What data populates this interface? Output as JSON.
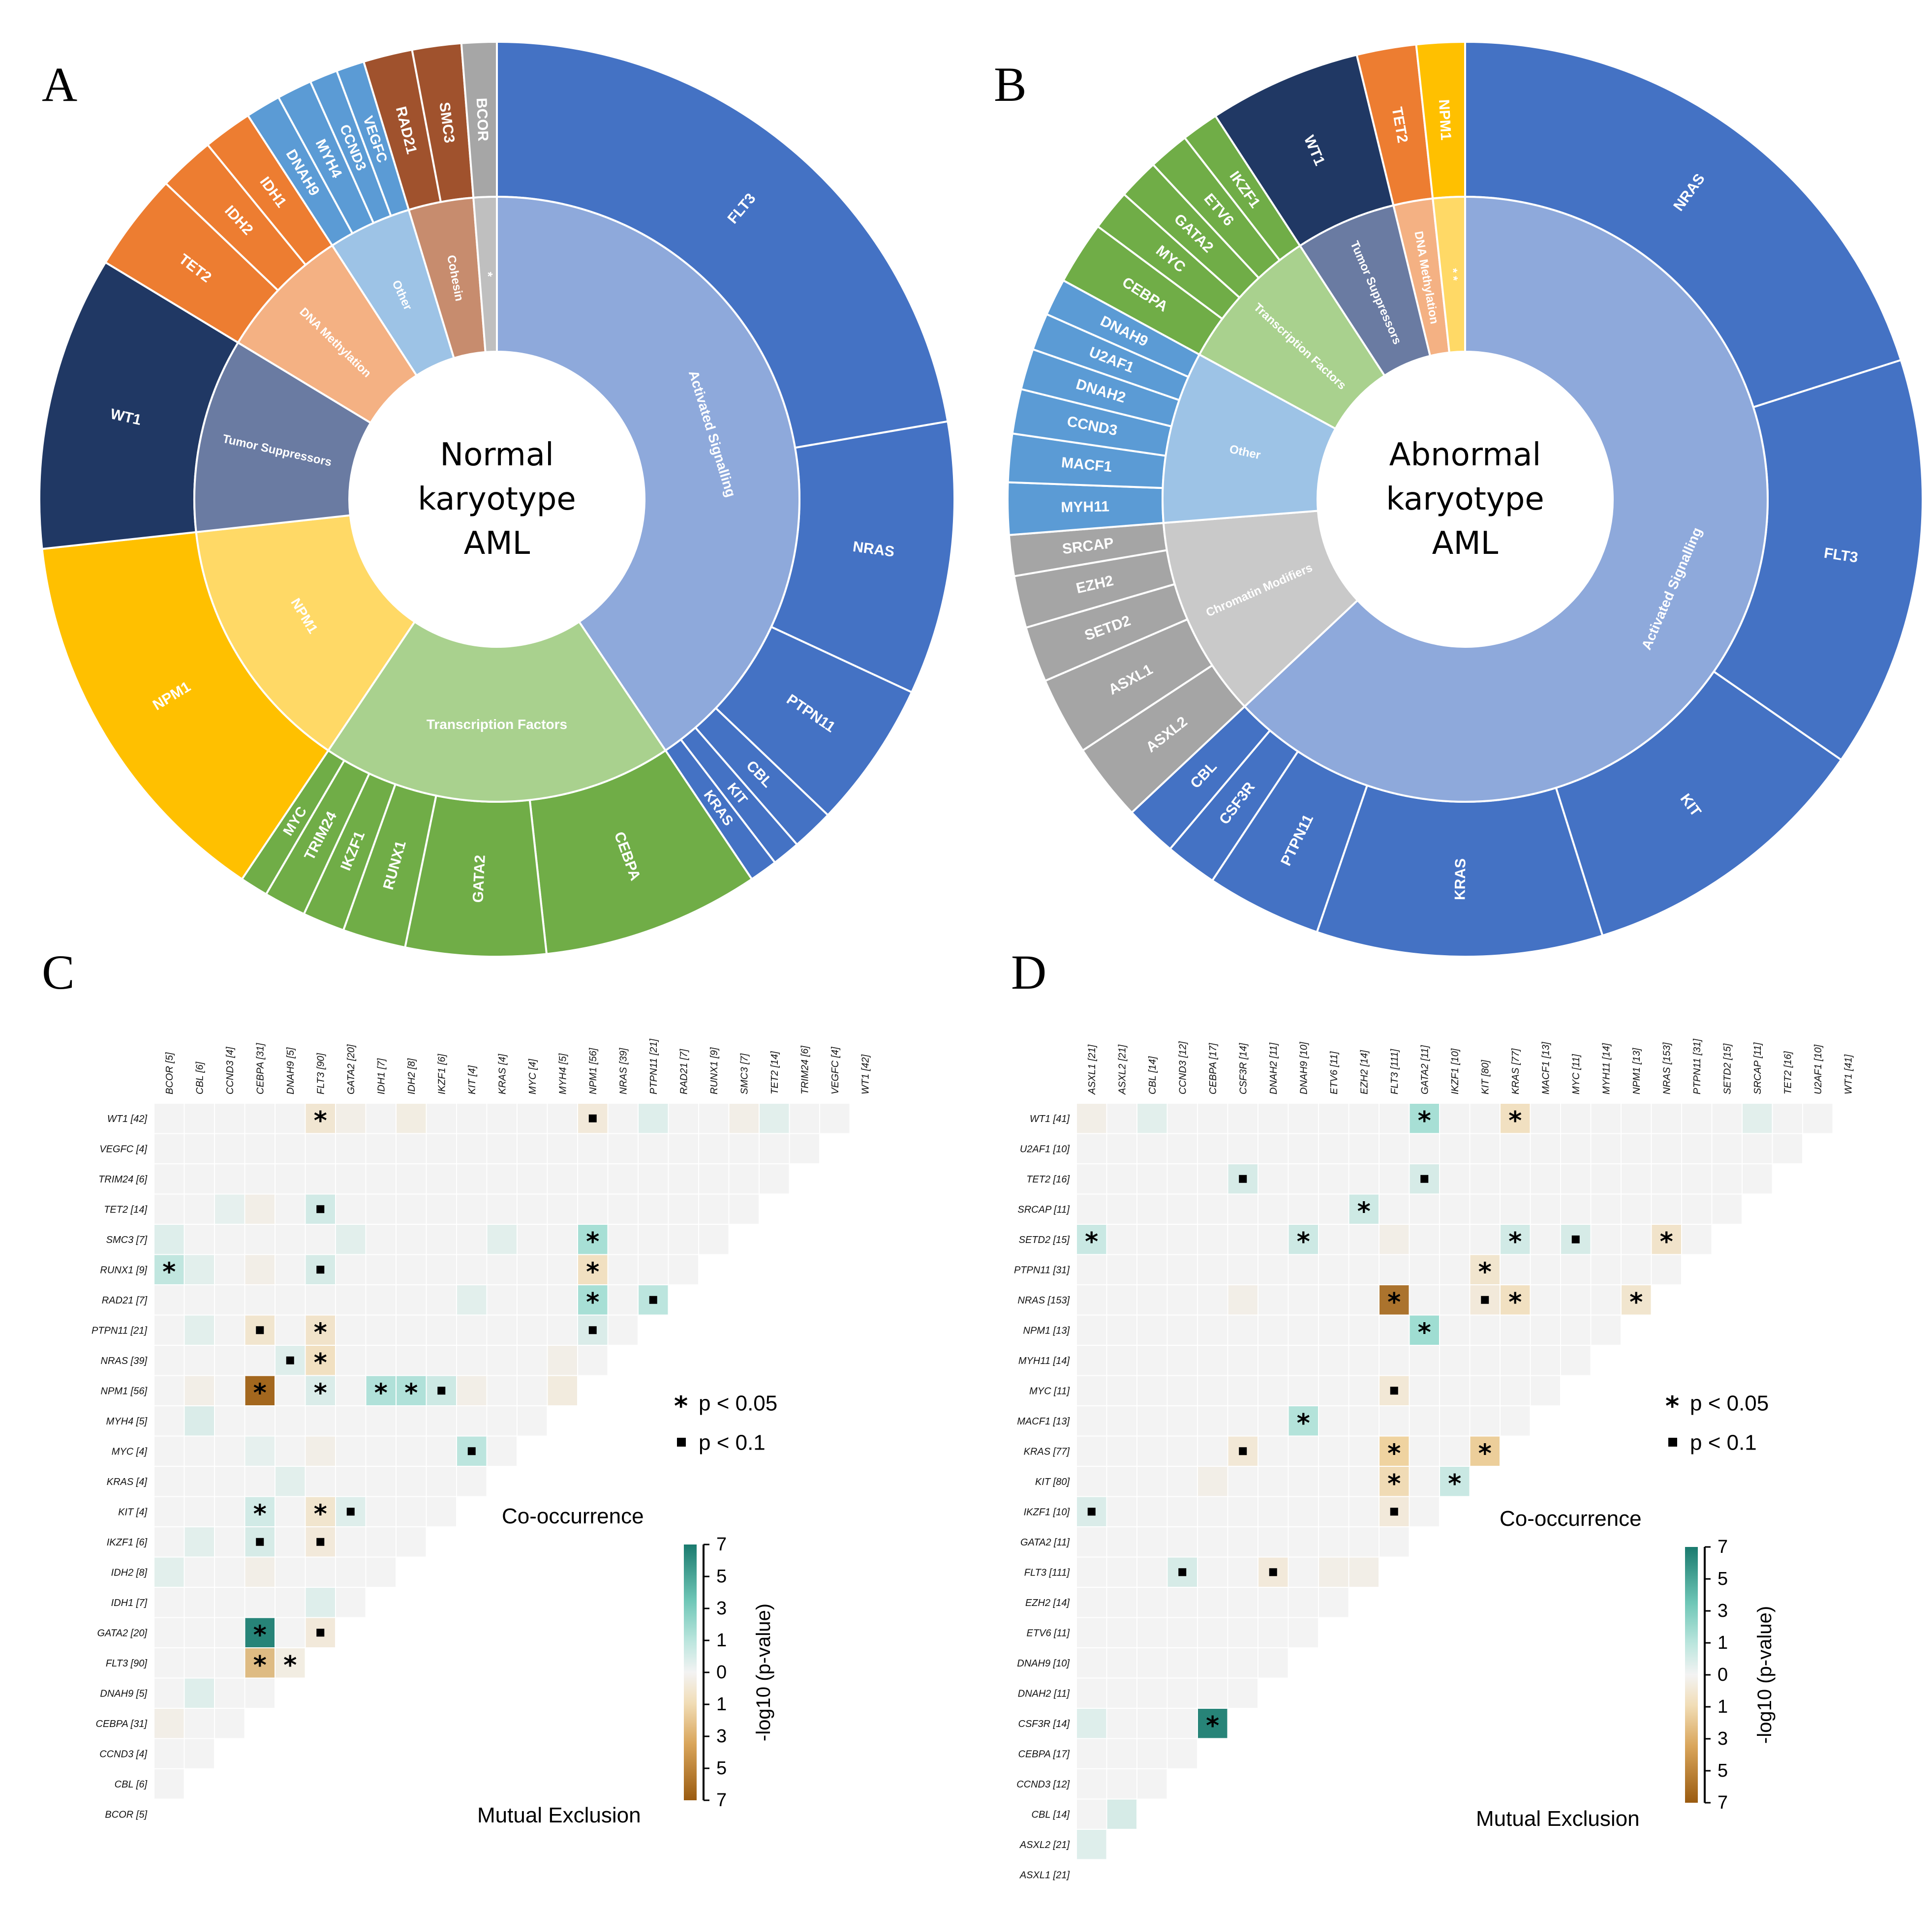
{
  "chart_data": [
    {
      "panel": "A",
      "type": "sunburst",
      "center_label": [
        "Normal",
        "karyotype",
        "AML"
      ],
      "start_angle": 0,
      "inner": [
        {
          "name": "Activated Signalling",
          "color": "#8EA9DB"
        },
        {
          "name": "Transcription Factors",
          "color": "#A9D18E"
        },
        {
          "name": "NPM1",
          "color": "#FFD966"
        },
        {
          "name": "Tumor Suppressors",
          "color": "#6A7BA2"
        },
        {
          "name": "DNA Methylation",
          "color": "#F4B183"
        },
        {
          "name": "Other",
          "color": "#9DC3E6"
        },
        {
          "name": "Cohesin",
          "color": "#C78C6E"
        },
        {
          "name": "*",
          "color": "#BFBFBF"
        }
      ],
      "outer": [
        {
          "name": "FLT3",
          "value": 90,
          "group": 0,
          "color": "#4472C4"
        },
        {
          "name": "NRAS",
          "value": 39,
          "group": 0,
          "color": "#4472C4"
        },
        {
          "name": "PTPN11",
          "value": 21,
          "group": 0,
          "color": "#4472C4"
        },
        {
          "name": "CBL",
          "value": 6,
          "group": 0,
          "color": "#4472C4"
        },
        {
          "name": "KIT",
          "value": 4,
          "group": 0,
          "color": "#4472C4"
        },
        {
          "name": "KRAS",
          "value": 4,
          "group": 0,
          "color": "#4472C4"
        },
        {
          "name": "CEBPA",
          "value": 31,
          "group": 1,
          "color": "#70AD47"
        },
        {
          "name": "GATA2",
          "value": 20,
          "group": 1,
          "color": "#70AD47"
        },
        {
          "name": "RUNX1",
          "value": 9,
          "group": 1,
          "color": "#70AD47"
        },
        {
          "name": "IKZF1",
          "value": 6,
          "group": 1,
          "color": "#70AD47"
        },
        {
          "name": "TRIM24",
          "value": 6,
          "group": 1,
          "color": "#70AD47"
        },
        {
          "name": "MYC",
          "value": 4,
          "group": 1,
          "color": "#70AD47"
        },
        {
          "name": "NPM1",
          "value": 56,
          "group": 2,
          "color": "#FFC000"
        },
        {
          "name": "WT1",
          "value": 42,
          "group": 3,
          "color": "#203864"
        },
        {
          "name": "TET2",
          "value": 14,
          "group": 4,
          "color": "#ED7D31"
        },
        {
          "name": "IDH2",
          "value": 8,
          "group": 4,
          "color": "#ED7D31"
        },
        {
          "name": "IDH1",
          "value": 7,
          "group": 4,
          "color": "#ED7D31"
        },
        {
          "name": "DNAH9",
          "value": 5,
          "group": 5,
          "color": "#5B9BD5"
        },
        {
          "name": "MYH4",
          "value": 5,
          "group": 5,
          "color": "#5B9BD5"
        },
        {
          "name": "CCND3",
          "value": 4,
          "group": 5,
          "color": "#5B9BD5"
        },
        {
          "name": "VEGFC",
          "value": 4,
          "group": 5,
          "color": "#5B9BD5"
        },
        {
          "name": "RAD21",
          "value": 7,
          "group": 6,
          "color": "#A0522D"
        },
        {
          "name": "SMC3",
          "value": 7,
          "group": 6,
          "color": "#A0522D"
        },
        {
          "name": "BCOR",
          "value": 5,
          "group": 7,
          "color": "#A6A6A6"
        }
      ]
    },
    {
      "panel": "B",
      "type": "sunburst",
      "center_label": [
        "Abnormal",
        "karyotype",
        "AML"
      ],
      "start_angle": 0,
      "inner": [
        {
          "name": "Activated Signalling",
          "color": "#8EA9DB"
        },
        {
          "name": "Chromatin Modifiers",
          "color": "#C9C9C9"
        },
        {
          "name": "Other",
          "color": "#9DC3E6"
        },
        {
          "name": "Transcription Factors",
          "color": "#A9D18E"
        },
        {
          "name": "Tumor Suppressors",
          "color": "#6A7BA2"
        },
        {
          "name": "DNA Methylation",
          "color": "#F4B183"
        },
        {
          "name": "* *",
          "color": "#FFD966"
        }
      ],
      "outer": [
        {
          "name": "NRAS",
          "value": 153,
          "group": 0,
          "color": "#4472C4"
        },
        {
          "name": "FLT3",
          "value": 111,
          "group": 0,
          "color": "#4472C4"
        },
        {
          "name": "KIT",
          "value": 80,
          "group": 0,
          "color": "#4472C4"
        },
        {
          "name": "KRAS",
          "value": 77,
          "group": 0,
          "color": "#4472C4"
        },
        {
          "name": "PTPN11",
          "value": 31,
          "group": 0,
          "color": "#4472C4"
        },
        {
          "name": "CSF3R",
          "value": 14,
          "group": 0,
          "color": "#4472C4"
        },
        {
          "name": "CBL",
          "value": 14,
          "group": 0,
          "color": "#4472C4"
        },
        {
          "name": "ASXL2",
          "value": 21,
          "group": 1,
          "color": "#A5A5A5"
        },
        {
          "name": "ASXL1",
          "value": 21,
          "group": 1,
          "color": "#A5A5A5"
        },
        {
          "name": "SETD2",
          "value": 15,
          "group": 1,
          "color": "#A5A5A5"
        },
        {
          "name": "EZH2",
          "value": 14,
          "group": 1,
          "color": "#A5A5A5"
        },
        {
          "name": "SRCAP",
          "value": 11,
          "group": 1,
          "color": "#A5A5A5"
        },
        {
          "name": "MYH11",
          "value": 14,
          "group": 2,
          "color": "#5B9BD5"
        },
        {
          "name": "MACF1",
          "value": 13,
          "group": 2,
          "color": "#5B9BD5"
        },
        {
          "name": "CCND3",
          "value": 12,
          "group": 2,
          "color": "#5B9BD5"
        },
        {
          "name": "DNAH2",
          "value": 11,
          "group": 2,
          "color": "#5B9BD5"
        },
        {
          "name": "U2AF1",
          "value": 10,
          "group": 2,
          "color": "#5B9BD5"
        },
        {
          "name": "DNAH9",
          "value": 10,
          "group": 2,
          "color": "#5B9BD5"
        },
        {
          "name": "CEBPA",
          "value": 17,
          "group": 3,
          "color": "#70AD47"
        },
        {
          "name": "MYC",
          "value": 11,
          "group": 3,
          "color": "#70AD47"
        },
        {
          "name": "GATA2",
          "value": 11,
          "group": 3,
          "color": "#70AD47"
        },
        {
          "name": "ETV6",
          "value": 11,
          "group": 3,
          "color": "#70AD47"
        },
        {
          "name": "IKZF1",
          "value": 10,
          "group": 3,
          "color": "#70AD47"
        },
        {
          "name": "WT1",
          "value": 41,
          "group": 4,
          "color": "#203864"
        },
        {
          "name": "TET2",
          "value": 16,
          "group": 5,
          "color": "#ED7D31"
        },
        {
          "name": "NPM1",
          "value": 13,
          "group": 6,
          "color": "#FFC000"
        }
      ]
    },
    {
      "panel": "C",
      "type": "heatmap",
      "genes": [
        "BCOR [5]",
        "CBL [6]",
        "CCND3 [4]",
        "CEBPA [31]",
        "DNAH9 [5]",
        "FLT3 [90]",
        "GATA2 [20]",
        "IDH1 [7]",
        "IDH2 [8]",
        "IKZF1 [6]",
        "KIT [4]",
        "KRAS [4]",
        "MYC [4]",
        "MYH4 [5]",
        "NPM1 [56]",
        "NRAS [39]",
        "PTPN11 [21]",
        "RAD21 [7]",
        "RUNX1 [9]",
        "SMC3 [7]",
        "TET2 [14]",
        "TRIM24 [6]",
        "VEGFC [4]",
        "WT1 [42]"
      ],
      "cells": [
        {
          "r": "WT1",
          "c": "FLT3",
          "v": -0.8,
          "sig": "*"
        },
        {
          "r": "WT1",
          "c": "NPM1",
          "v": -0.6,
          "sig": "."
        },
        {
          "r": "WT1",
          "c": "IDH2",
          "v": -0.4
        },
        {
          "r": "WT1",
          "c": "GATA2",
          "v": -0.3
        },
        {
          "r": "WT1",
          "c": "PTPN11",
          "v": 0.5
        },
        {
          "r": "WT1",
          "c": "TET2",
          "v": 0.4
        },
        {
          "r": "WT1",
          "c": "SMC3",
          "v": -0.3
        },
        {
          "r": "TET2",
          "c": "FLT3",
          "v": 0.8,
          "sig": "."
        },
        {
          "r": "TET2",
          "c": "CEBPA",
          "v": -0.3
        },
        {
          "r": "TET2",
          "c": "CCND3",
          "v": 0.3
        },
        {
          "r": "SMC3",
          "c": "NPM1",
          "v": 1.8,
          "sig": "*"
        },
        {
          "r": "SMC3",
          "c": "BCOR",
          "v": 0.5
        },
        {
          "r": "SMC3",
          "c": "GATA2",
          "v": 0.4
        },
        {
          "r": "SMC3",
          "c": "KRAS",
          "v": 0.4
        },
        {
          "r": "RUNX1",
          "c": "BCOR",
          "v": 1.2,
          "sig": "*"
        },
        {
          "r": "RUNX1",
          "c": "FLT3",
          "v": 0.7,
          "sig": "."
        },
        {
          "r": "RUNX1",
          "c": "NPM1",
          "v": -1.2,
          "sig": "*"
        },
        {
          "r": "RUNX1",
          "c": "CBL",
          "v": 0.4
        },
        {
          "r": "RUNX1",
          "c": "CEBPA",
          "v": -0.3
        },
        {
          "r": "RAD21",
          "c": "NPM1",
          "v": 1.8,
          "sig": "*"
        },
        {
          "r": "RAD21",
          "c": "PTPN11",
          "v": 1.3,
          "sig": "."
        },
        {
          "r": "RAD21",
          "c": "KIT",
          "v": 0.4
        },
        {
          "r": "PTPN11",
          "c": "CEBPA",
          "v": -0.9,
          "sig": "."
        },
        {
          "r": "PTPN11",
          "c": "FLT3",
          "v": -1.0,
          "sig": "*"
        },
        {
          "r": "PTPN11",
          "c": "NPM1",
          "v": 0.6,
          "sig": "."
        },
        {
          "r": "PTPN11",
          "c": "CBL",
          "v": 0.4
        },
        {
          "r": "NRAS",
          "c": "DNAH9",
          "v": 0.5,
          "sig": "."
        },
        {
          "r": "NRAS",
          "c": "FLT3",
          "v": -1.2,
          "sig": "*"
        },
        {
          "r": "NRAS",
          "c": "MYH4",
          "v": -0.3
        },
        {
          "r": "NPM1",
          "c": "CEBPA",
          "v": -6.5,
          "sig": "*"
        },
        {
          "r": "NPM1",
          "c": "FLT3",
          "v": 0.6,
          "sig": "*"
        },
        {
          "r": "NPM1",
          "c": "IDH1",
          "v": 1.6,
          "sig": "*"
        },
        {
          "r": "NPM1",
          "c": "IDH2",
          "v": 1.6,
          "sig": "*"
        },
        {
          "r": "NPM1",
          "c": "IKZF1",
          "v": 0.9,
          "sig": "."
        },
        {
          "r": "NPM1",
          "c": "MYH4",
          "v": -0.5
        },
        {
          "r": "NPM1",
          "c": "KIT",
          "v": -0.3
        },
        {
          "r": "NPM1",
          "c": "CBL",
          "v": -0.3
        },
        {
          "r": "MYH4",
          "c": "CBL",
          "v": 0.6
        },
        {
          "r": "MYC",
          "c": "KIT",
          "v": 1.3,
          "sig": "."
        },
        {
          "r": "MYC",
          "c": "FLT3",
          "v": -0.3
        },
        {
          "r": "MYC",
          "c": "CEBPA",
          "v": 0.3
        },
        {
          "r": "KRAS",
          "c": "DNAH9",
          "v": 0.4
        },
        {
          "r": "KIT",
          "c": "CEBPA",
          "v": 0.8,
          "sig": "*"
        },
        {
          "r": "KIT",
          "c": "FLT3",
          "v": -0.9,
          "sig": "*"
        },
        {
          "r": "KIT",
          "c": "GATA2",
          "v": 0.5,
          "sig": "."
        },
        {
          "r": "IKZF1",
          "c": "CEBPA",
          "v": 0.7,
          "sig": "."
        },
        {
          "r": "IKZF1",
          "c": "FLT3",
          "v": -0.6,
          "sig": "."
        },
        {
          "r": "IKZF1",
          "c": "CBL",
          "v": 0.4
        },
        {
          "r": "IDH2",
          "c": "BCOR",
          "v": 0.4
        },
        {
          "r": "IDH2",
          "c": "CEBPA",
          "v": -0.3
        },
        {
          "r": "IDH1",
          "c": "FLT3",
          "v": 0.5
        },
        {
          "r": "GATA2",
          "c": "CEBPA",
          "v": 6.5,
          "sig": "*"
        },
        {
          "r": "GATA2",
          "c": "FLT3",
          "v": -0.6,
          "sig": "."
        },
        {
          "r": "FLT3",
          "c": "CEBPA",
          "v": -3.0,
          "sig": "*"
        },
        {
          "r": "FLT3",
          "c": "DNAH9",
          "v": -0.4,
          "sig": "*"
        },
        {
          "r": "DNAH9",
          "c": "CBL",
          "v": 0.5
        },
        {
          "r": "CEBPA",
          "c": "BCOR",
          "v": -0.3
        }
      ],
      "legend": {
        "sig05": "p < 0.05",
        "sig10": "p < 0.1",
        "co": "Co-occurrence",
        "mx": "Mutual Exclusion"
      },
      "colorbar": {
        "ticks": [
          "7",
          "5",
          "3",
          "1",
          "0",
          "1",
          "3",
          "5",
          "7"
        ],
        "label": "-log10 (p-value)",
        "top_color": "#1A7A6E",
        "bottom_color": "#9A5B10"
      }
    },
    {
      "panel": "D",
      "type": "heatmap",
      "genes": [
        "ASXL1 [21]",
        "ASXL2 [21]",
        "CBL [14]",
        "CCND3 [12]",
        "CEBPA [17]",
        "CSF3R [14]",
        "DNAH2 [11]",
        "DNAH9 [10]",
        "ETV6 [11]",
        "EZH2 [14]",
        "FLT3 [111]",
        "GATA2 [11]",
        "IKZF1 [10]",
        "KIT [80]",
        "KRAS [77]",
        "MACF1 [13]",
        "MYC [11]",
        "MYH11 [14]",
        "NPM1 [13]",
        "NRAS [153]",
        "PTPN11 [31]",
        "SETD2 [15]",
        "SRCAP [11]",
        "TET2 [16]",
        "U2AF1 [10]",
        "WT1 [41]"
      ],
      "cells": [
        {
          "r": "WT1",
          "c": "GATA2",
          "v": 1.8,
          "sig": "*"
        },
        {
          "r": "WT1",
          "c": "KRAS",
          "v": -1.2,
          "sig": "*"
        },
        {
          "r": "WT1",
          "c": "ASXL1",
          "v": -0.3
        },
        {
          "r": "WT1",
          "c": "CBL",
          "v": 0.4
        },
        {
          "r": "WT1",
          "c": "SRCAP",
          "v": 0.4
        },
        {
          "r": "TET2",
          "c": "CSF3R",
          "v": 0.7,
          "sig": "."
        },
        {
          "r": "TET2",
          "c": "GATA2",
          "v": 0.7,
          "sig": "."
        },
        {
          "r": "SRCAP",
          "c": "EZH2",
          "v": 0.9,
          "sig": "*"
        },
        {
          "r": "SETD2",
          "c": "ASXL1",
          "v": 1.0,
          "sig": "*"
        },
        {
          "r": "SETD2",
          "c": "DNAH9",
          "v": 0.9,
          "sig": "*"
        },
        {
          "r": "SETD2",
          "c": "KRAS",
          "v": 0.8,
          "sig": "*"
        },
        {
          "r": "SETD2",
          "c": "MYC",
          "v": 0.7,
          "sig": "."
        },
        {
          "r": "SETD2",
          "c": "NRAS",
          "v": -1.0,
          "sig": "*"
        },
        {
          "r": "SETD2",
          "c": "FLT3",
          "v": -0.3
        },
        {
          "r": "PTPN11",
          "c": "KIT",
          "v": -0.9,
          "sig": "*"
        },
        {
          "r": "NRAS",
          "c": "FLT3",
          "v": -6.0,
          "sig": "*"
        },
        {
          "r": "NRAS",
          "c": "KIT",
          "v": -0.6,
          "sig": "."
        },
        {
          "r": "NRAS",
          "c": "KRAS",
          "v": -1.2,
          "sig": "*"
        },
        {
          "r": "NRAS",
          "c": "NPM1",
          "v": -0.9,
          "sig": "*"
        },
        {
          "r": "NRAS",
          "c": "CSF3R",
          "v": -0.3
        },
        {
          "r": "NPM1",
          "c": "GATA2",
          "v": 2.0,
          "sig": "*"
        },
        {
          "r": "MYC",
          "c": "FLT3",
          "v": -0.7,
          "sig": "."
        },
        {
          "r": "MACF1",
          "c": "DNAH9",
          "v": 1.5,
          "sig": "*"
        },
        {
          "r": "KRAS",
          "c": "CSF3R",
          "v": -0.7,
          "sig": "."
        },
        {
          "r": "KRAS",
          "c": "FLT3",
          "v": -2.0,
          "sig": "*"
        },
        {
          "r": "KRAS",
          "c": "KIT",
          "v": -2.2,
          "sig": "*"
        },
        {
          "r": "KIT",
          "c": "FLT3",
          "v": -1.5,
          "sig": "*"
        },
        {
          "r": "KIT",
          "c": "IKZF1",
          "v": 1.0,
          "sig": "*"
        },
        {
          "r": "KIT",
          "c": "CEBPA",
          "v": -0.3
        },
        {
          "r": "IKZF1",
          "c": "ASXL1",
          "v": 0.6,
          "sig": "."
        },
        {
          "r": "IKZF1",
          "c": "FLT3",
          "v": -0.6,
          "sig": "."
        },
        {
          "r": "FLT3",
          "c": "CCND3",
          "v": 0.7,
          "sig": "."
        },
        {
          "r": "FLT3",
          "c": "DNAH2",
          "v": -0.6,
          "sig": "."
        },
        {
          "r": "FLT3",
          "c": "ETV6",
          "v": -0.3
        },
        {
          "r": "FLT3",
          "c": "EZH2",
          "v": -0.3
        },
        {
          "r": "CSF3R",
          "c": "CEBPA",
          "v": 6.5,
          "sig": "*"
        },
        {
          "r": "CSF3R",
          "c": "ASXL1",
          "v": 0.5
        },
        {
          "r": "ASXL2",
          "c": "ASXL1",
          "v": 0.5
        },
        {
          "r": "CBL",
          "c": "ASXL2",
          "v": 0.7
        }
      ],
      "legend": {
        "sig05": "p < 0.05",
        "sig10": "p < 0.1",
        "co": "Co-occurrence",
        "mx": "Mutual Exclusion"
      },
      "colorbar": {
        "ticks": [
          "7",
          "5",
          "3",
          "1",
          "0",
          "1",
          "3",
          "5",
          "7"
        ],
        "label": "-log10 (p-value)",
        "top_color": "#1A7A6E",
        "bottom_color": "#9A5B10"
      }
    }
  ]
}
